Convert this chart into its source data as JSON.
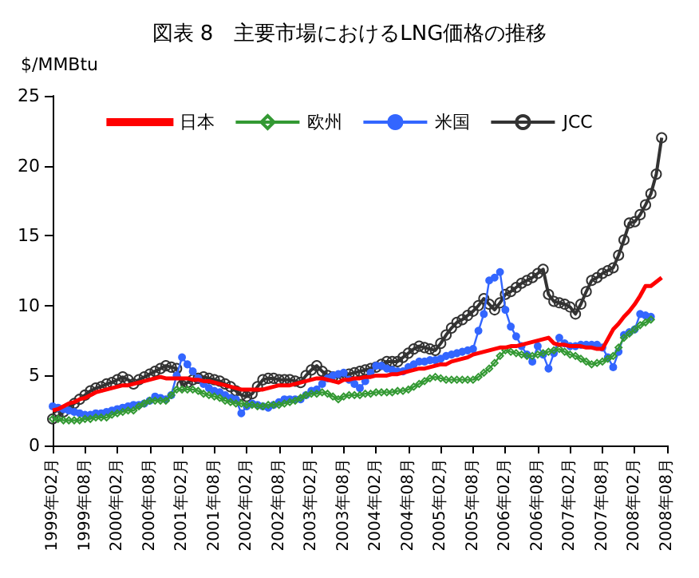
{
  "chart_data": {
    "type": "line",
    "title": "図表 8　主要市場におけるLNG価格の推移",
    "ylabel": "$/MMBtu",
    "categories": [
      "1999年02月",
      null,
      null,
      null,
      null,
      null,
      "1999年08月",
      null,
      null,
      null,
      null,
      null,
      "2000年02月",
      null,
      null,
      null,
      null,
      null,
      "2000年08月",
      null,
      null,
      null,
      null,
      null,
      "2001年02月",
      null,
      null,
      null,
      null,
      null,
      "2001年08月",
      null,
      null,
      null,
      null,
      null,
      "2002年02月",
      null,
      null,
      null,
      null,
      null,
      "2002年08月",
      null,
      null,
      null,
      null,
      null,
      "2003年02月",
      null,
      null,
      null,
      null,
      null,
      "2003年08月",
      null,
      null,
      null,
      null,
      null,
      "2004年02月",
      null,
      null,
      null,
      null,
      null,
      "2004年08月",
      null,
      null,
      null,
      null,
      null,
      "2005年02月",
      null,
      null,
      null,
      null,
      null,
      "2005年08月",
      null,
      null,
      null,
      null,
      null,
      "2006年02月",
      null,
      null,
      null,
      null,
      null,
      "2006年08月",
      null,
      null,
      null,
      null,
      null,
      "2007年02月",
      null,
      null,
      null,
      null,
      null,
      "2007年08月",
      null,
      null,
      null,
      null,
      null,
      "2008年02月",
      null,
      null,
      null,
      null,
      null,
      "2008年08月"
    ],
    "series": [
      {
        "name": "日本",
        "color": "#ff0000",
        "marker": "none",
        "values": [
          2.5,
          2.6,
          2.8,
          3.0,
          3.1,
          3.3,
          3.4,
          3.6,
          3.8,
          3.9,
          4.0,
          4.1,
          4.2,
          4.3,
          4.3,
          4.4,
          4.5,
          4.6,
          4.7,
          4.8,
          4.9,
          4.8,
          4.8,
          4.8,
          4.8,
          4.8,
          4.7,
          4.7,
          4.6,
          4.6,
          4.5,
          4.4,
          4.3,
          4.2,
          4.1,
          4.0,
          4.0,
          4.0,
          4.0,
          4.0,
          4.1,
          4.2,
          4.3,
          4.3,
          4.3,
          4.4,
          4.5,
          4.6,
          4.7,
          4.8,
          4.8,
          4.7,
          4.6,
          4.5,
          4.7,
          4.7,
          4.8,
          4.8,
          4.9,
          4.9,
          5.0,
          5.0,
          5.0,
          5.1,
          5.1,
          5.2,
          5.3,
          5.4,
          5.5,
          5.5,
          5.6,
          5.7,
          5.8,
          5.8,
          6.0,
          6.1,
          6.2,
          6.3,
          6.5,
          6.6,
          6.7,
          6.8,
          6.9,
          7.0,
          7.0,
          7.1,
          7.1,
          7.2,
          7.3,
          7.4,
          7.5,
          7.6,
          7.7,
          7.3,
          7.2,
          7.2,
          7.1,
          7.1,
          7.1,
          7.0,
          7.0,
          6.9,
          6.9,
          7.6,
          8.3,
          8.7,
          9.2,
          9.6,
          10.1,
          10.7,
          11.4,
          11.4,
          11.7,
          12.0,
          null
        ]
      },
      {
        "name": "欧州",
        "color": "#339933",
        "marker": "diamond",
        "values": [
          1.9,
          1.9,
          1.8,
          1.8,
          1.8,
          1.8,
          1.9,
          1.9,
          2.0,
          2.0,
          2.0,
          2.2,
          2.3,
          2.4,
          2.5,
          2.5,
          2.8,
          3.0,
          3.2,
          3.2,
          3.2,
          3.2,
          3.6,
          4.0,
          4.0,
          4.0,
          4.0,
          3.9,
          3.7,
          3.6,
          3.5,
          3.4,
          3.2,
          3.1,
          3.0,
          3.0,
          2.9,
          2.9,
          2.8,
          2.8,
          2.9,
          2.9,
          2.9,
          3.0,
          3.1,
          3.2,
          3.4,
          3.6,
          3.7,
          3.7,
          3.8,
          3.7,
          3.5,
          3.3,
          3.5,
          3.6,
          3.6,
          3.6,
          3.7,
          3.7,
          3.8,
          3.8,
          3.8,
          3.8,
          3.9,
          3.9,
          4.0,
          4.2,
          4.4,
          4.6,
          4.8,
          4.9,
          4.8,
          4.7,
          4.7,
          4.7,
          4.7,
          4.7,
          4.7,
          4.9,
          5.2,
          5.5,
          5.9,
          6.4,
          6.8,
          6.7,
          6.6,
          6.5,
          6.4,
          6.4,
          6.5,
          6.6,
          6.7,
          6.8,
          6.9,
          6.7,
          6.5,
          6.4,
          6.2,
          6.0,
          5.8,
          5.9,
          6.0,
          6.2,
          6.4,
          7.0,
          7.7,
          8.0,
          8.3,
          8.6,
          8.8,
          9.0,
          null,
          null,
          null
        ]
      },
      {
        "name": "米国",
        "color": "#3366ff",
        "marker": "circle",
        "values": [
          2.8,
          2.7,
          2.6,
          2.5,
          2.4,
          2.3,
          2.2,
          2.2,
          2.3,
          2.3,
          2.4,
          2.5,
          2.6,
          2.7,
          2.8,
          2.9,
          2.9,
          3.0,
          3.2,
          3.5,
          3.4,
          3.3,
          3.6,
          5.0,
          6.3,
          5.8,
          5.3,
          4.8,
          4.4,
          4.1,
          3.9,
          3.8,
          3.6,
          3.4,
          3.3,
          2.3,
          2.8,
          3.0,
          2.9,
          2.8,
          2.7,
          2.9,
          3.1,
          3.3,
          3.3,
          3.3,
          3.3,
          3.6,
          3.9,
          4.0,
          4.4,
          4.8,
          5.0,
          5.1,
          5.2,
          4.7,
          4.4,
          4.1,
          4.6,
          5.2,
          5.7,
          5.7,
          5.5,
          5.4,
          5.3,
          5.3,
          5.6,
          5.8,
          6.0,
          6.0,
          6.1,
          6.1,
          6.2,
          6.4,
          6.5,
          6.6,
          6.7,
          6.8,
          6.9,
          8.2,
          9.4,
          11.8,
          12.0,
          12.4,
          9.7,
          8.5,
          7.8,
          7.1,
          6.5,
          6.0,
          7.1,
          6.5,
          5.5,
          6.6,
          7.7,
          7.3,
          7.1,
          7.1,
          7.2,
          7.2,
          7.2,
          7.2,
          7.0,
          6.3,
          5.6,
          6.7,
          7.9,
          8.1,
          8.3,
          9.4,
          9.3,
          9.2,
          null,
          null,
          null
        ]
      },
      {
        "name": "JCC",
        "color": "#333333",
        "marker": "circle",
        "values": [
          1.9,
          2.1,
          2.4,
          2.7,
          3.0,
          3.3,
          3.6,
          3.9,
          4.1,
          4.2,
          4.4,
          4.5,
          4.7,
          4.9,
          4.7,
          4.4,
          4.7,
          4.9,
          5.1,
          5.3,
          5.5,
          5.7,
          5.6,
          5.5,
          4.3,
          4.5,
          4.7,
          4.8,
          4.9,
          4.8,
          4.7,
          4.6,
          4.4,
          4.2,
          3.9,
          3.6,
          3.5,
          3.7,
          4.2,
          4.7,
          4.8,
          4.8,
          4.7,
          4.7,
          4.7,
          4.6,
          4.5,
          5.0,
          5.4,
          5.7,
          5.3,
          5.0,
          4.9,
          4.9,
          5.0,
          5.1,
          5.2,
          5.3,
          5.4,
          5.5,
          5.6,
          5.8,
          6.0,
          6.0,
          6.0,
          6.3,
          6.6,
          6.9,
          7.1,
          7.0,
          6.9,
          6.8,
          7.3,
          7.9,
          8.4,
          8.8,
          9.0,
          9.3,
          9.6,
          10.0,
          10.5,
          10.1,
          9.7,
          10.2,
          10.8,
          11.0,
          11.3,
          11.6,
          11.8,
          12.0,
          12.3,
          12.6,
          10.8,
          10.3,
          10.2,
          10.1,
          9.9,
          9.4,
          10.1,
          11.0,
          11.8,
          12.0,
          12.3,
          12.5,
          12.7,
          13.6,
          14.7,
          15.9,
          16.0,
          16.5,
          17.2,
          18.0,
          19.4,
          22.0,
          null
        ]
      }
    ],
    "ylim": [
      0,
      25
    ],
    "yticks": [
      0,
      5,
      10,
      15,
      20,
      25
    ],
    "grid": false,
    "legend": "top"
  }
}
